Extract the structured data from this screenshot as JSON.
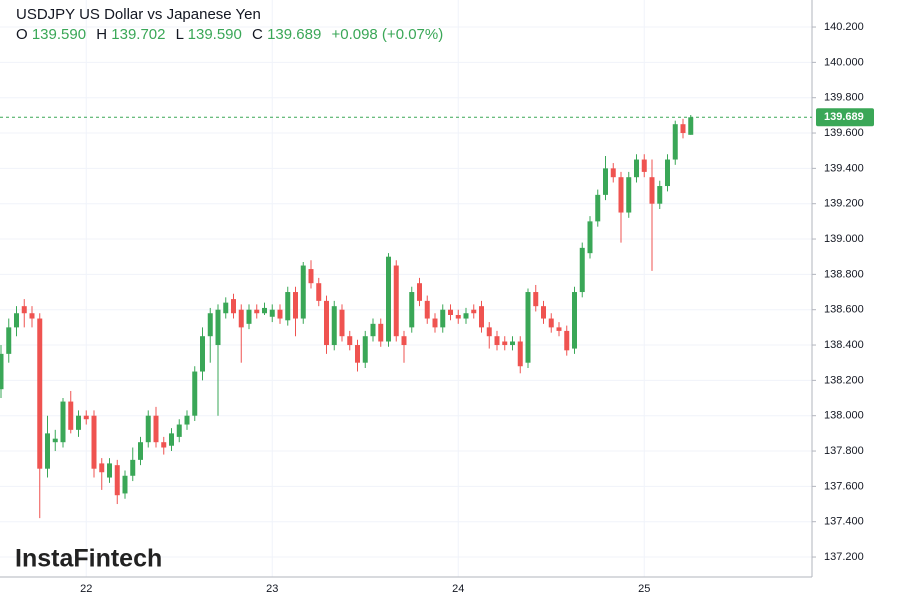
{
  "chart_data": {
    "type": "candlestick",
    "title": "USDJPY US Dollar vs Japanese Yen",
    "ohlc_header": {
      "o_label": "O",
      "o": "139.590",
      "h_label": "H",
      "h": "139.702",
      "l_label": "L",
      "l": "139.590",
      "c_label": "C",
      "c": "139.689",
      "change": "+0.098 (+0.07%)"
    },
    "watermark": "InstaFintech",
    "up_color": "#3aa757",
    "down_color": "#ef5350",
    "categories": [
      null,
      null,
      null,
      null,
      null,
      null,
      null,
      null,
      null,
      null,
      null,
      "22",
      null,
      null,
      null,
      null,
      null,
      null,
      null,
      null,
      null,
      null,
      null,
      null,
      null,
      null,
      null,
      null,
      null,
      null,
      null,
      null,
      null,
      null,
      null,
      "23",
      null,
      null,
      null,
      null,
      null,
      null,
      null,
      null,
      null,
      null,
      null,
      null,
      null,
      null,
      null,
      null,
      null,
      null,
      null,
      null,
      null,
      null,
      null,
      "24",
      null,
      null,
      null,
      null,
      null,
      null,
      null,
      null,
      null,
      null,
      null,
      null,
      null,
      null,
      null,
      null,
      null,
      null,
      null,
      null,
      null,
      null,
      null,
      "25",
      null,
      null,
      null,
      null,
      null,
      null
    ],
    "open": [
      138.15,
      138.35,
      138.5,
      138.62,
      138.58,
      138.55,
      137.7,
      137.85,
      137.85,
      138.08,
      137.92,
      138.0,
      138.0,
      137.73,
      137.65,
      137.72,
      137.56,
      137.66,
      137.75,
      137.85,
      138.0,
      137.85,
      137.83,
      137.88,
      137.95,
      138.0,
      138.25,
      138.45,
      138.4,
      138.58,
      138.66,
      138.6,
      138.52,
      138.6,
      138.58,
      138.56,
      138.6,
      138.54,
      138.7,
      138.55,
      138.83,
      138.75,
      138.65,
      138.4,
      138.6,
      138.45,
      138.4,
      138.3,
      138.45,
      138.52,
      138.42,
      138.85,
      138.45,
      138.5,
      138.75,
      138.65,
      138.55,
      138.5,
      138.6,
      138.57,
      138.55,
      138.6,
      138.62,
      138.5,
      138.45,
      138.42,
      138.4,
      138.42,
      138.3,
      138.7,
      138.62,
      138.55,
      138.5,
      138.48,
      138.38,
      138.7,
      138.92,
      139.1,
      139.25,
      139.4,
      139.35,
      139.15,
      139.35,
      139.45,
      139.35,
      139.2,
      139.3,
      139.45,
      139.65,
      139.59
    ],
    "high": [
      138.4,
      138.55,
      138.62,
      138.66,
      138.62,
      138.58,
      138.0,
      137.92,
      138.1,
      138.14,
      138.03,
      138.03,
      138.03,
      137.76,
      137.76,
      137.75,
      137.69,
      137.82,
      137.88,
      138.03,
      138.05,
      137.88,
      137.93,
      137.98,
      138.03,
      138.28,
      138.5,
      138.61,
      138.63,
      138.67,
      138.69,
      138.63,
      138.63,
      138.63,
      138.64,
      138.63,
      138.63,
      138.73,
      138.73,
      138.87,
      138.88,
      138.78,
      138.68,
      138.65,
      138.63,
      138.48,
      138.43,
      138.48,
      138.55,
      138.55,
      138.92,
      138.88,
      138.48,
      138.73,
      138.78,
      138.68,
      138.58,
      138.63,
      138.63,
      138.6,
      138.61,
      138.63,
      138.65,
      138.53,
      138.48,
      138.45,
      138.45,
      138.45,
      138.72,
      138.74,
      138.65,
      138.58,
      138.53,
      138.51,
      138.73,
      138.98,
      139.13,
      139.28,
      139.47,
      139.43,
      139.38,
      139.38,
      139.48,
      139.48,
      139.45,
      139.33,
      139.48,
      139.67,
      139.68,
      139.702
    ],
    "low": [
      138.1,
      138.3,
      138.45,
      138.5,
      138.5,
      137.42,
      137.65,
      137.8,
      137.82,
      137.9,
      137.88,
      137.95,
      137.65,
      137.58,
      137.62,
      137.5,
      137.53,
      137.63,
      137.72,
      137.82,
      137.82,
      137.78,
      137.8,
      137.85,
      137.92,
      137.97,
      138.2,
      138.3,
      138.0,
      138.55,
      138.55,
      138.3,
      138.49,
      138.55,
      138.57,
      138.53,
      138.52,
      138.51,
      138.45,
      138.52,
      138.72,
      138.62,
      138.35,
      138.37,
      138.42,
      138.37,
      138.25,
      138.27,
      138.42,
      138.39,
      138.39,
      138.42,
      138.3,
      138.47,
      138.62,
      138.52,
      138.47,
      138.47,
      138.54,
      138.52,
      138.52,
      138.55,
      138.47,
      138.38,
      138.37,
      138.37,
      138.37,
      138.24,
      138.27,
      138.59,
      138.52,
      138.47,
      138.45,
      138.34,
      138.35,
      138.67,
      138.89,
      139.07,
      139.22,
      139.32,
      138.98,
      139.12,
      139.32,
      139.35,
      138.82,
      139.17,
      139.27,
      139.42,
      139.57,
      139.59
    ],
    "close": [
      138.35,
      138.5,
      138.58,
      138.58,
      138.55,
      137.7,
      137.9,
      137.87,
      138.08,
      137.92,
      138.0,
      137.98,
      137.7,
      137.68,
      137.73,
      137.55,
      137.66,
      137.75,
      137.85,
      138.0,
      137.85,
      137.82,
      137.9,
      137.95,
      138.0,
      138.25,
      138.45,
      138.58,
      138.6,
      138.64,
      138.58,
      138.5,
      138.6,
      138.58,
      138.61,
      138.6,
      138.55,
      138.7,
      138.55,
      138.85,
      138.75,
      138.65,
      138.4,
      138.62,
      138.45,
      138.4,
      138.3,
      138.45,
      138.52,
      138.42,
      138.9,
      138.45,
      138.4,
      138.7,
      138.65,
      138.55,
      138.5,
      138.6,
      138.57,
      138.55,
      138.58,
      138.58,
      138.5,
      138.45,
      138.4,
      138.4,
      138.42,
      138.28,
      138.7,
      138.62,
      138.55,
      138.5,
      138.48,
      138.37,
      138.7,
      138.95,
      139.1,
      139.25,
      139.4,
      139.35,
      139.15,
      139.35,
      139.45,
      139.38,
      139.2,
      139.3,
      139.45,
      139.65,
      139.6,
      139.689
    ],
    "last_price": {
      "value": 139.689,
      "label": "139.689"
    },
    "ylim": [
      137.087,
      140.353
    ],
    "yticks": [
      {
        "value": 137.2,
        "label": "137.200"
      },
      {
        "value": 137.4,
        "label": "137.400"
      },
      {
        "value": 137.6,
        "label": "137.600"
      },
      {
        "value": 137.8,
        "label": "137.800"
      },
      {
        "value": 138.0,
        "label": "138.000"
      },
      {
        "value": 138.2,
        "label": "138.200"
      },
      {
        "value": 138.4,
        "label": "138.400"
      },
      {
        "value": 138.6,
        "label": "138.600"
      },
      {
        "value": 138.8,
        "label": "138.800"
      },
      {
        "value": 139.0,
        "label": "139.000"
      },
      {
        "value": 139.2,
        "label": "139.200"
      },
      {
        "value": 139.4,
        "label": "139.400"
      },
      {
        "value": 139.6,
        "label": "139.600"
      },
      {
        "value": 139.8,
        "label": "139.800"
      },
      {
        "value": 140.0,
        "label": "140.000"
      },
      {
        "value": 140.2,
        "label": "140.200"
      }
    ],
    "grid": true
  }
}
